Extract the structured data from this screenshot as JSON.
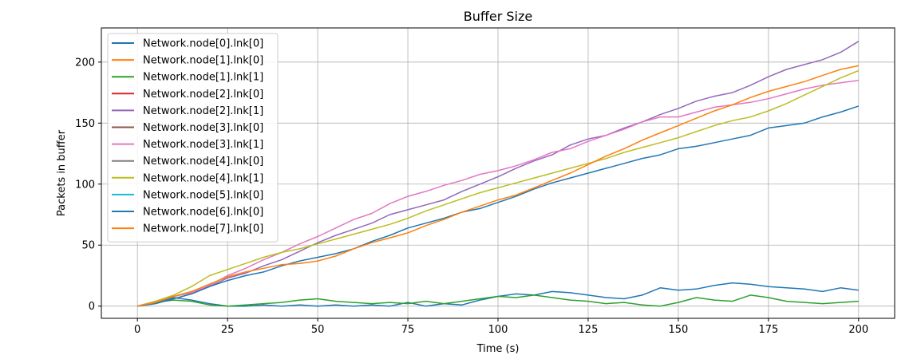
{
  "chart_data": {
    "type": "line",
    "title": "Buffer Size",
    "xlabel": "Time (s)",
    "ylabel": "Packets in buffer",
    "xlim": [
      -10,
      210
    ],
    "ylim": [
      -10,
      228
    ],
    "xticks": [
      0,
      25,
      50,
      75,
      100,
      125,
      150,
      175,
      200
    ],
    "yticks": [
      0,
      50,
      100,
      150,
      200
    ],
    "grid": true,
    "legend_position": "upper-left",
    "series": [
      {
        "name": "Network.node[0].lnk[0]",
        "color": "#1f77b4",
        "x": [
          0,
          5,
          10,
          15,
          20,
          25,
          30,
          35,
          40,
          45,
          50,
          55,
          60,
          65,
          70,
          75,
          80,
          85,
          90,
          95,
          100,
          105,
          110,
          115,
          120,
          125,
          130,
          135,
          140,
          145,
          150,
          155,
          160,
          165,
          170,
          175,
          180,
          185,
          190,
          195,
          200
        ],
        "values": [
          0,
          3,
          7,
          5,
          2,
          0,
          0,
          1,
          0,
          1,
          0,
          1,
          0,
          1,
          0,
          3,
          0,
          2,
          1,
          5,
          8,
          10,
          9,
          12,
          11,
          9,
          7,
          6,
          9,
          15,
          13,
          14,
          17,
          19,
          18,
          16,
          15,
          14,
          12,
          15,
          13
        ]
      },
      {
        "name": "Network.node[1].lnk[0]",
        "color": "#ff7f0e",
        "x": [],
        "values": []
      },
      {
        "name": "Network.node[1].lnk[1]",
        "color": "#2ca02c",
        "x": [
          0,
          5,
          10,
          15,
          20,
          25,
          30,
          35,
          40,
          45,
          50,
          55,
          60,
          65,
          70,
          75,
          80,
          85,
          90,
          95,
          100,
          105,
          110,
          115,
          120,
          125,
          130,
          135,
          140,
          145,
          150,
          155,
          160,
          165,
          170,
          175,
          180,
          185,
          190,
          195,
          200
        ],
        "values": [
          0,
          3,
          5,
          4,
          1,
          0,
          1,
          2,
          3,
          5,
          6,
          4,
          3,
          2,
          3,
          2,
          4,
          2,
          4,
          6,
          8,
          7,
          9,
          7,
          5,
          4,
          2,
          3,
          1,
          0,
          3,
          7,
          5,
          4,
          9,
          7,
          4,
          3,
          2,
          3,
          4
        ]
      },
      {
        "name": "Network.node[2].lnk[0]",
        "color": "#d62728",
        "x": [],
        "values": []
      },
      {
        "name": "Network.node[2].lnk[1]",
        "color": "#9467bd",
        "x": [
          0,
          5,
          10,
          15,
          20,
          25,
          30,
          35,
          40,
          45,
          50,
          55,
          60,
          65,
          70,
          75,
          80,
          85,
          90,
          95,
          100,
          105,
          110,
          115,
          120,
          125,
          130,
          135,
          140,
          145,
          150,
          155,
          160,
          165,
          170,
          175,
          180,
          185,
          190,
          195,
          200
        ],
        "values": [
          0,
          3,
          8,
          11,
          16,
          23,
          27,
          33,
          38,
          45,
          52,
          58,
          63,
          68,
          75,
          79,
          83,
          87,
          94,
          100,
          106,
          113,
          119,
          124,
          132,
          137,
          140,
          146,
          151,
          157,
          162,
          168,
          172,
          175,
          181,
          188,
          194,
          198,
          202,
          208,
          217
        ]
      },
      {
        "name": "Network.node[3].lnk[0]",
        "color": "#8c564b",
        "x": [],
        "values": []
      },
      {
        "name": "Network.node[3].lnk[1]",
        "color": "#e377c2",
        "x": [
          0,
          5,
          10,
          15,
          20,
          25,
          30,
          35,
          40,
          45,
          50,
          55,
          60,
          65,
          70,
          75,
          80,
          85,
          90,
          95,
          100,
          105,
          110,
          115,
          120,
          125,
          130,
          135,
          140,
          145,
          150,
          155,
          160,
          165,
          170,
          175,
          180,
          185,
          190,
          195,
          200
        ],
        "values": [
          0,
          4,
          8,
          11,
          17,
          25,
          31,
          38,
          44,
          51,
          57,
          64,
          71,
          76,
          84,
          90,
          94,
          99,
          103,
          108,
          111,
          115,
          120,
          126,
          129,
          135,
          140,
          145,
          151,
          155,
          155,
          159,
          163,
          165,
          167,
          170,
          174,
          178,
          181,
          183,
          185
        ]
      },
      {
        "name": "Network.node[4].lnk[0]",
        "color": "#7f7f7f",
        "x": [],
        "values": []
      },
      {
        "name": "Network.node[4].lnk[1]",
        "color": "#bcbd22",
        "x": [
          0,
          5,
          10,
          15,
          20,
          25,
          30,
          35,
          40,
          45,
          50,
          55,
          60,
          65,
          70,
          75,
          80,
          85,
          90,
          95,
          100,
          105,
          110,
          115,
          120,
          125,
          130,
          135,
          140,
          145,
          150,
          155,
          160,
          165,
          170,
          175,
          180,
          185,
          190,
          195,
          200
        ],
        "values": [
          0,
          4,
          9,
          16,
          25,
          30,
          35,
          40,
          44,
          47,
          51,
          55,
          59,
          63,
          67,
          72,
          78,
          83,
          88,
          93,
          97,
          101,
          105,
          109,
          113,
          117,
          121,
          126,
          130,
          134,
          138,
          143,
          148,
          152,
          155,
          160,
          166,
          173,
          180,
          187,
          193
        ]
      },
      {
        "name": "Network.node[5].lnk[0]",
        "color": "#17becf",
        "x": [],
        "values": []
      },
      {
        "name": "Network.node[6].lnk[0]",
        "color": "#1f77b4",
        "x": [
          0,
          5,
          10,
          15,
          20,
          25,
          30,
          35,
          40,
          45,
          50,
          55,
          60,
          65,
          70,
          75,
          80,
          85,
          90,
          95,
          100,
          105,
          110,
          115,
          120,
          125,
          130,
          135,
          140,
          145,
          150,
          155,
          160,
          165,
          170,
          175,
          180,
          185,
          190,
          195,
          200
        ],
        "values": [
          0,
          2,
          6,
          10,
          16,
          21,
          25,
          28,
          33,
          37,
          40,
          43,
          47,
          53,
          58,
          64,
          68,
          72,
          77,
          80,
          85,
          90,
          96,
          101,
          105,
          109,
          113,
          117,
          121,
          124,
          129,
          131,
          134,
          137,
          140,
          146,
          148,
          150,
          155,
          159,
          164
        ]
      },
      {
        "name": "Network.node[7].lnk[0]",
        "color": "#ff7f0e",
        "x": [
          0,
          5,
          10,
          15,
          20,
          25,
          30,
          35,
          40,
          45,
          50,
          55,
          60,
          65,
          70,
          75,
          80,
          85,
          90,
          95,
          100,
          105,
          110,
          115,
          120,
          125,
          130,
          135,
          140,
          145,
          150,
          155,
          160,
          165,
          170,
          175,
          180,
          185,
          190,
          195,
          200
        ],
        "values": [
          0,
          3,
          8,
          12,
          18,
          24,
          28,
          31,
          34,
          35,
          37,
          41,
          47,
          52,
          56,
          60,
          66,
          71,
          77,
          82,
          87,
          91,
          97,
          103,
          109,
          116,
          123,
          129,
          136,
          142,
          148,
          154,
          160,
          165,
          171,
          176,
          180,
          184,
          189,
          194,
          197
        ]
      }
    ]
  }
}
